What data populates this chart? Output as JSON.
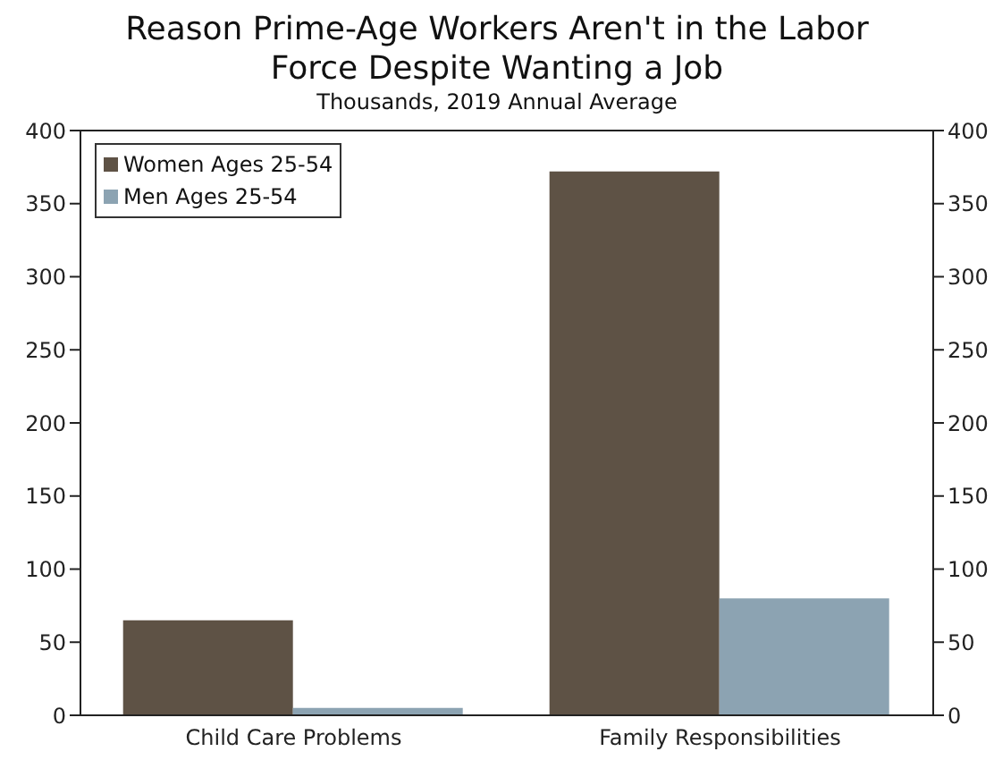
{
  "chart_data": {
    "type": "bar",
    "title": "Reason Prime-Age Workers Aren't in the Labor Force Despite Wanting a Job",
    "subtitle": "Thousands, 2019 Annual Average",
    "categories": [
      "Child Care Problems",
      "Family Responsibilities"
    ],
    "series": [
      {
        "name": "Women Ages 25-54",
        "color": "#5e5245",
        "values": [
          65,
          372
        ]
      },
      {
        "name": "Men Ages 25-54",
        "color": "#8ca3b2",
        "values": [
          5,
          80
        ]
      }
    ],
    "ylim": [
      0,
      400
    ],
    "yticks": [
      0,
      50,
      100,
      150,
      200,
      250,
      300,
      350,
      400
    ],
    "y2lim": [
      0,
      400
    ],
    "y2ticks": [
      0,
      50,
      100,
      150,
      200,
      250,
      300,
      350,
      400
    ],
    "grid": false,
    "legend": "top left"
  }
}
